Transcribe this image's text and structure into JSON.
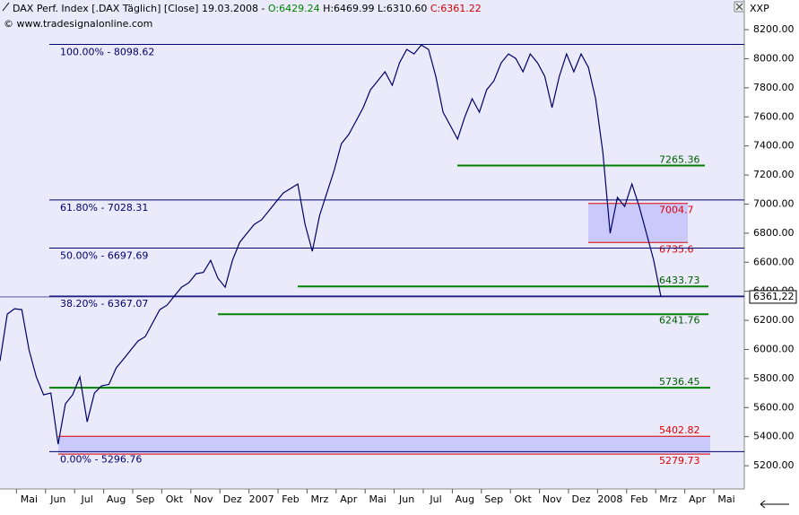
{
  "chart_data": {
    "type": "line",
    "title": "DAX Perf. Index [.DAX  Täglich] [Close] 19.03.2008 - ",
    "open_label": "O:6429.24",
    "high_label": "H:6469.99",
    "low_label": "L:6310.60",
    "close_label": "C:6361.22",
    "source": "© www.tradesignalonline.com",
    "y_axis_label": "XXP",
    "color": "#000066",
    "categories": [
      null,
      null,
      null,
      null,
      "Mai",
      null,
      null,
      null,
      "Jun",
      null,
      null,
      null,
      "Jul",
      null,
      null,
      null,
      "Aug",
      null,
      null,
      null,
      "Sep",
      null,
      null,
      null,
      "Okt",
      null,
      null,
      null,
      "Nov",
      null,
      null,
      null,
      "Dez",
      null,
      null,
      null,
      "2007",
      null,
      null,
      null,
      "Feb",
      null,
      null,
      null,
      "Mrz",
      null,
      null,
      null,
      "Apr",
      null,
      null,
      null,
      "Mai",
      null,
      null,
      null,
      "Jun",
      null,
      null,
      null,
      "Jul",
      null,
      null,
      null,
      "Aug",
      null,
      null,
      null,
      "Sep",
      null,
      null,
      null,
      "Okt",
      null,
      null,
      null,
      "Nov",
      null,
      null,
      null,
      "Dez",
      null,
      null,
      null,
      "2008",
      null,
      null,
      null,
      "Feb",
      null,
      null,
      null,
      "Mrz",
      null,
      null,
      null,
      "Apr",
      null,
      null,
      null,
      "Mai",
      null,
      null,
      null
    ],
    "values": [
      5920,
      6243,
      6280,
      6274,
      5996,
      5811,
      5688,
      5700,
      5348,
      5626,
      5688,
      5811,
      5502,
      5700,
      5749,
      5760,
      5873,
      5934,
      5996,
      6058,
      6089,
      6181,
      6274,
      6305,
      6367,
      6428,
      6459,
      6521,
      6530,
      6613,
      6490,
      6428,
      6613,
      6737,
      6799,
      6860,
      6891,
      6953,
      7015,
      7076,
      7107,
      7138,
      6860,
      6675,
      6922,
      7076,
      7231,
      7416,
      7478,
      7570,
      7663,
      7786,
      7848,
      7910,
      7817,
      7972,
      8064,
      8033,
      8095,
      8064,
      7879,
      7632,
      7540,
      7447,
      7601,
      7725,
      7632,
      7786,
      7848,
      7972,
      8033,
      8002,
      7910,
      8033,
      7972,
      7879,
      7663,
      7879,
      8033,
      7910,
      8033,
      7941,
      7725,
      7355,
      6799,
      7046,
      6984,
      7138,
      6984,
      6799,
      6613,
      6361,
      null,
      null,
      null,
      null,
      null,
      null,
      null,
      null,
      null,
      null,
      null,
      null
    ],
    "ylim": [
      5040,
      8404
    ],
    "yticks": [
      {
        "value": 5200,
        "label": "5200.00"
      },
      {
        "value": 5400,
        "label": "5400.00"
      },
      {
        "value": 5600,
        "label": "5600.00"
      },
      {
        "value": 5800,
        "label": "5800.00"
      },
      {
        "value": 6000,
        "label": "6000.00"
      },
      {
        "value": 6200,
        "label": "6200.00"
      },
      {
        "value": 6400,
        "label": "6400.00"
      },
      {
        "value": 6600,
        "label": "6600.00"
      },
      {
        "value": 6800,
        "label": "6800.00"
      },
      {
        "value": 7000,
        "label": "7000.00"
      },
      {
        "value": 7200,
        "label": "7200.00"
      },
      {
        "value": 7400,
        "label": "7400.00"
      },
      {
        "value": 7600,
        "label": "7600.00"
      },
      {
        "value": 7800,
        "label": "7800.00"
      },
      {
        "value": 8000,
        "label": "8000.00"
      },
      {
        "value": 8200,
        "label": "8200.00"
      }
    ],
    "fib_levels": [
      {
        "value": 8098.62,
        "label": "100.00% - 8098.62"
      },
      {
        "value": 7028.31,
        "label": "61.80% - 7028.31"
      },
      {
        "value": 6697.69,
        "label": "50.00% - 6697.69"
      },
      {
        "value": 6367.07,
        "label": "38.20% - 6367.07"
      },
      {
        "value": 5296.76,
        "label": "0.00% - 5296.76"
      }
    ],
    "support_levels": [
      7265.36,
      6433.73,
      6241.76,
      5736.45
    ],
    "zones": [
      {
        "top": 7004.7,
        "bottom": 6735.6
      },
      {
        "top": 5402.82,
        "bottom": 5279.73
      }
    ],
    "last_price": {
      "value": 6361.22,
      "label": "6361,22"
    }
  }
}
